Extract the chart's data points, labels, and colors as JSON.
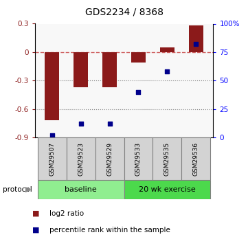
{
  "title": "GDS2234 / 8368",
  "samples": [
    "GSM29507",
    "GSM29523",
    "GSM29529",
    "GSM29533",
    "GSM29535",
    "GSM29536"
  ],
  "log2_ratio": [
    -0.72,
    -0.37,
    -0.37,
    -0.11,
    0.05,
    0.28
  ],
  "percentile_rank": [
    2,
    12,
    12,
    40,
    58,
    82
  ],
  "left_ylim": [
    -0.9,
    0.3
  ],
  "right_ylim": [
    0,
    100
  ],
  "left_yticks": [
    -0.9,
    -0.6,
    -0.3,
    0.0,
    0.3
  ],
  "right_yticks": [
    0,
    25,
    50,
    75,
    100
  ],
  "right_yticklabels": [
    "0",
    "25",
    "50",
    "75",
    "100%"
  ],
  "groups": [
    {
      "label": "baseline",
      "start": 0,
      "end": 3,
      "color": "#90EE90"
    },
    {
      "label": "20 wk exercise",
      "start": 3,
      "end": 6,
      "color": "#4CD94C"
    }
  ],
  "bar_color": "#8B1A1A",
  "scatter_color": "#00008B",
  "dashed_line_color": "#CD5C5C",
  "dotted_line_color": "#888888",
  "plot_bg_color": "#F8F8F8",
  "bar_width": 0.5,
  "legend_bar_label": "log2 ratio",
  "legend_scatter_label": "percentile rank within the sample",
  "protocol_label": "protocol"
}
